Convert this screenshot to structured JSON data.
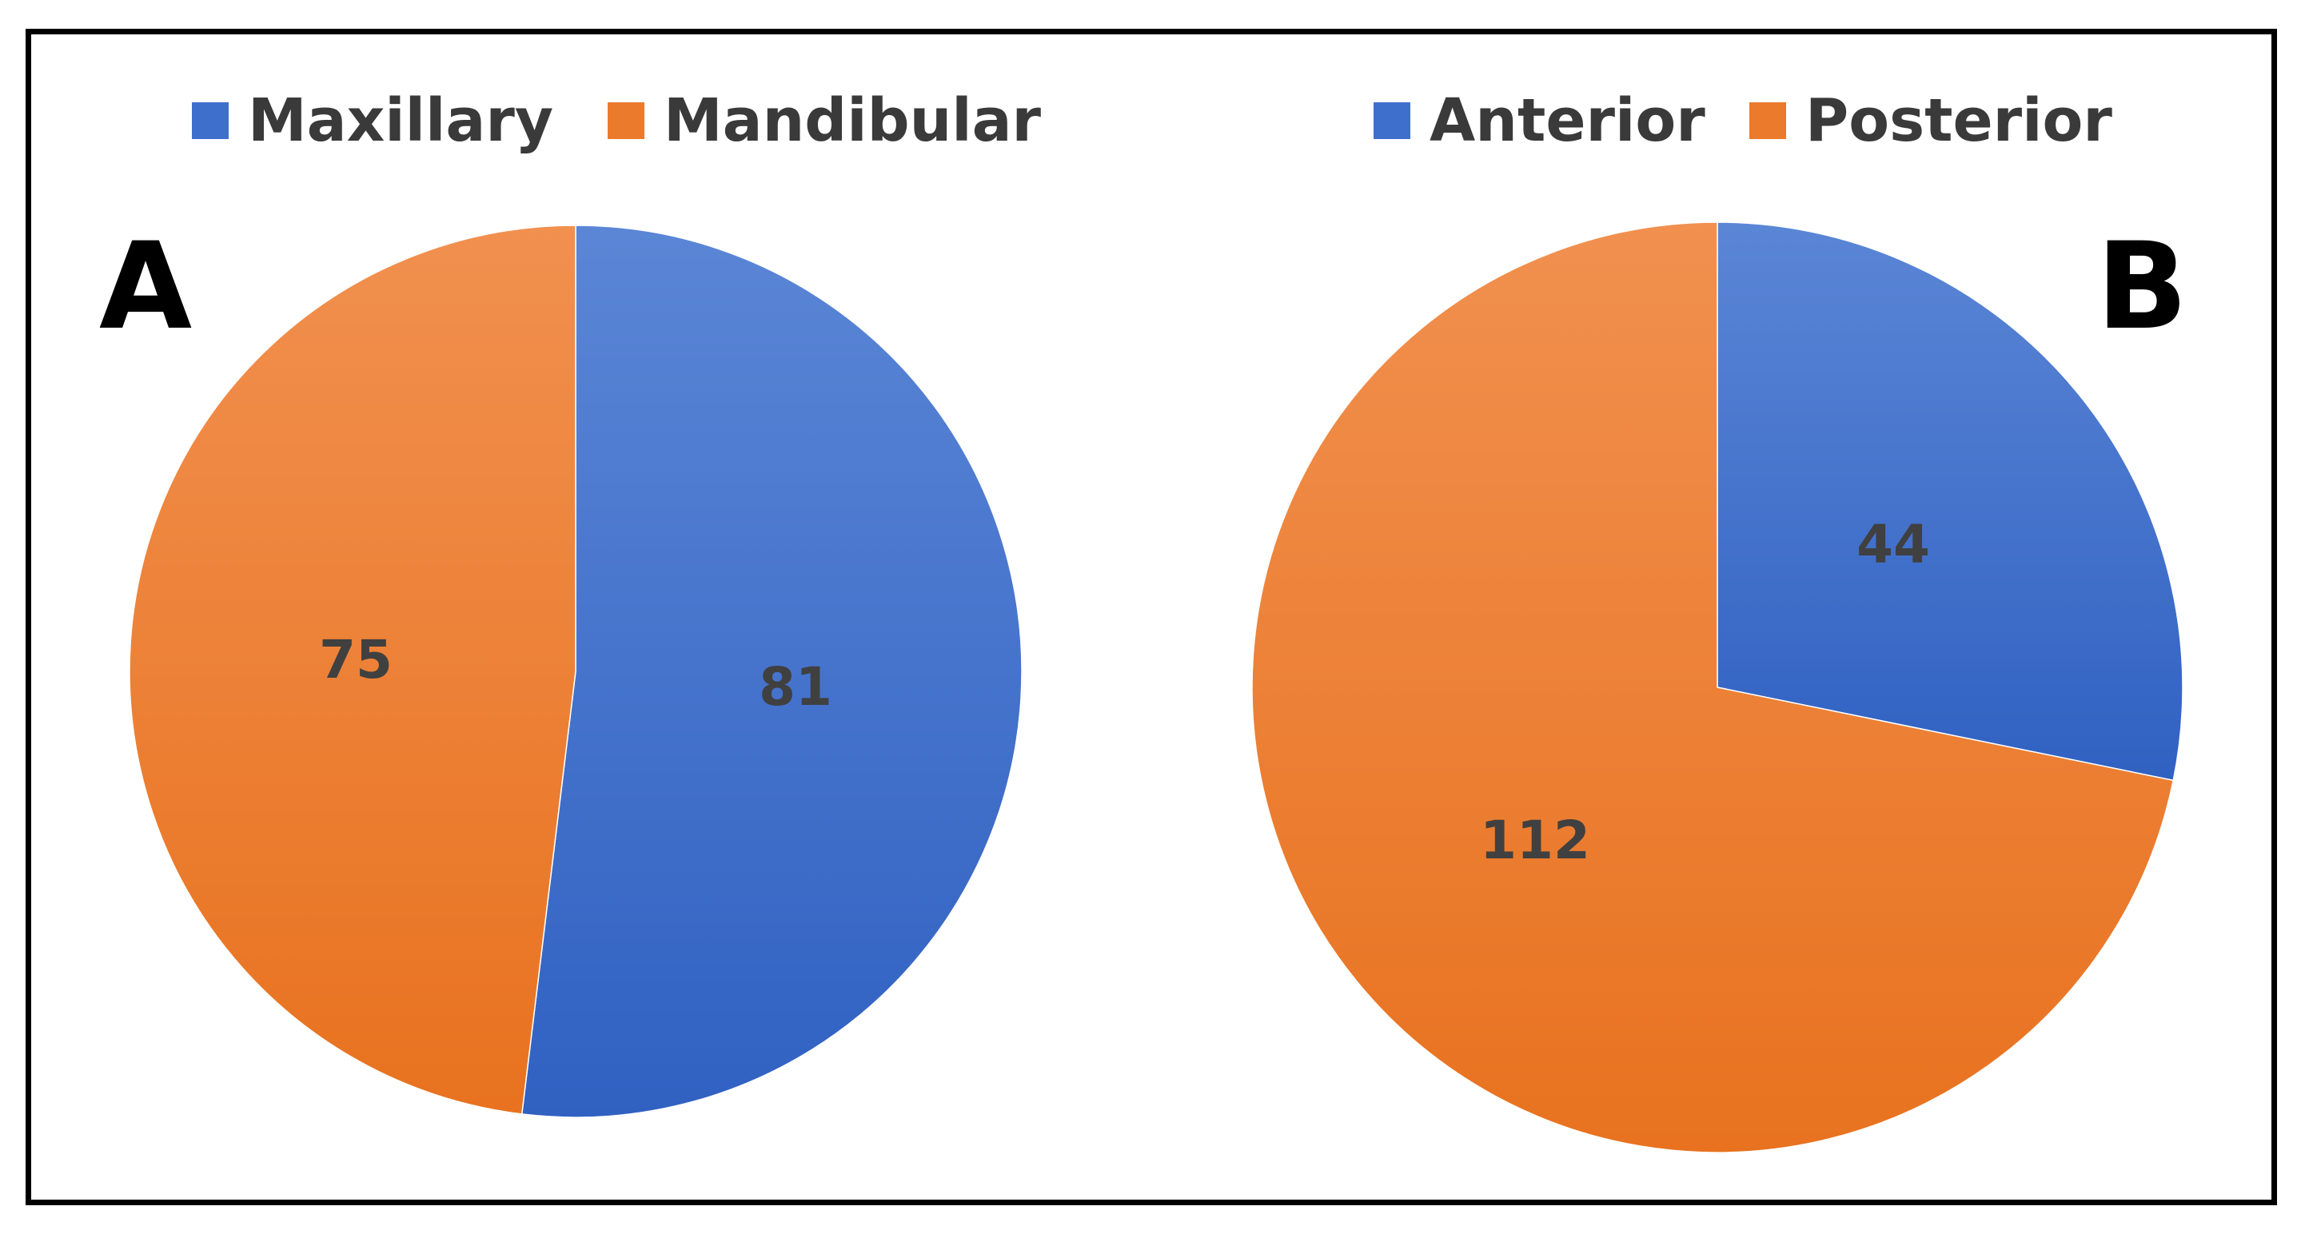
{
  "colors": {
    "blue": "#3f6fcc",
    "orange": "#ec7a2c",
    "frame": "#000000"
  },
  "chart_data": [
    {
      "type": "pie",
      "panel_label": "A",
      "legend_position": "top",
      "categories": [
        "Maxillary",
        "Mandibular"
      ],
      "values": [
        81,
        75
      ],
      "colors": [
        "#3f6fcc",
        "#ec7a2c"
      ],
      "data_labels": [
        "81",
        "75"
      ]
    },
    {
      "type": "pie",
      "panel_label": "B",
      "legend_position": "top",
      "categories": [
        "Anterior",
        "Posterior"
      ],
      "values": [
        44,
        112
      ],
      "colors": [
        "#3f6fcc",
        "#ec7a2c"
      ],
      "data_labels": [
        "44",
        "112"
      ]
    }
  ]
}
